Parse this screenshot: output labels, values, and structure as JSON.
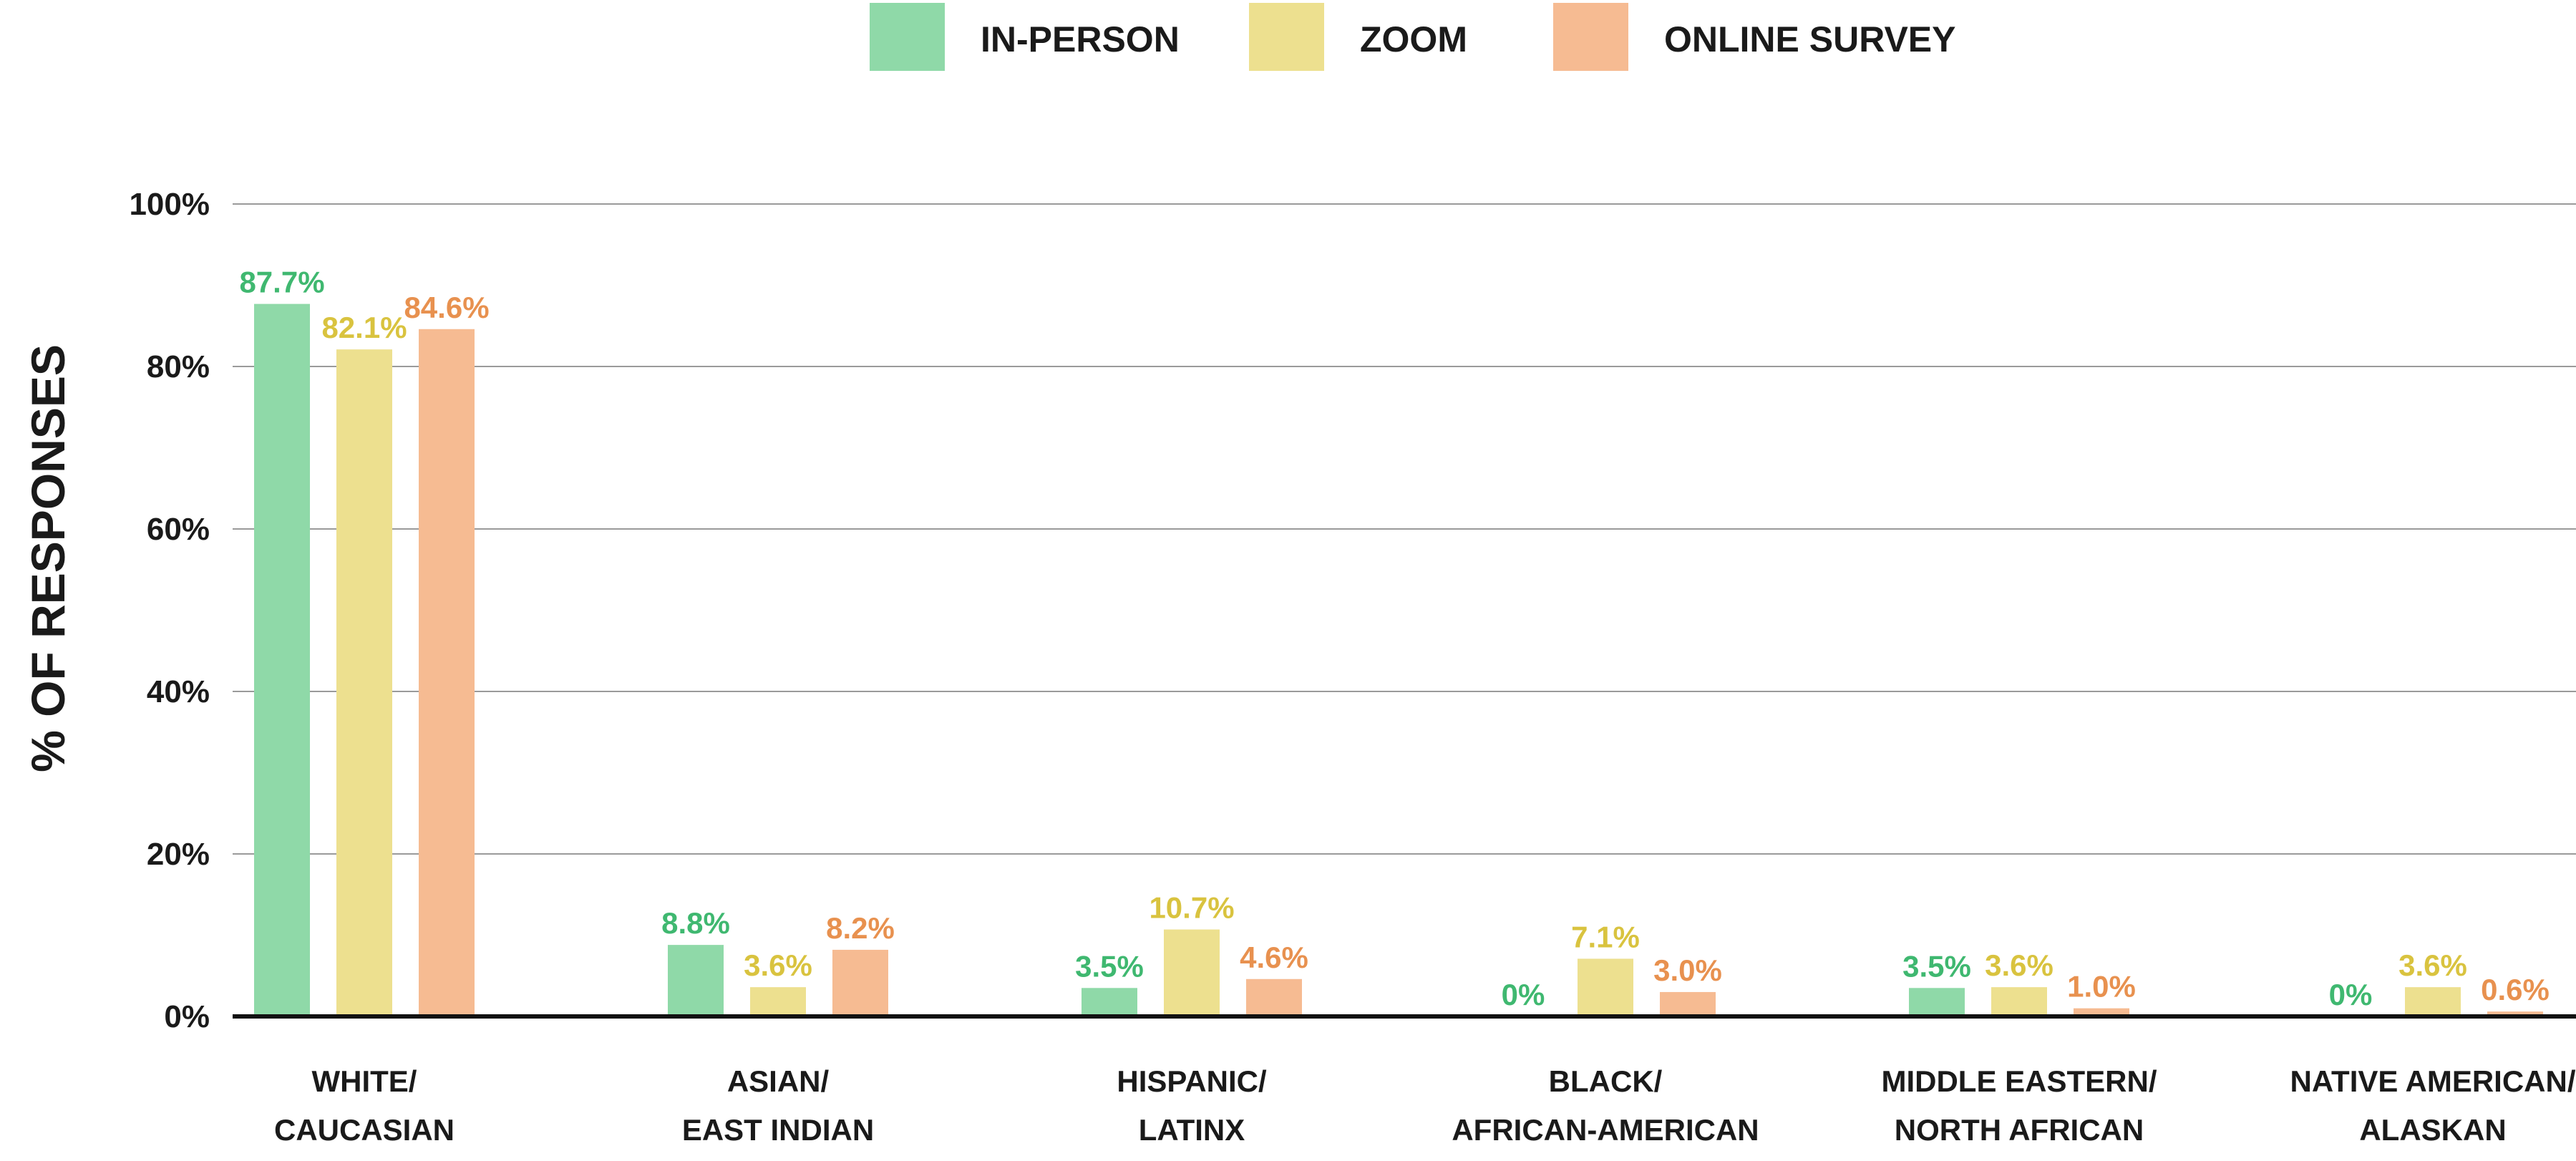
{
  "chart_data": {
    "type": "bar",
    "title": "",
    "xlabel": "",
    "ylabel": "% OF RESPONSES",
    "ylim": [
      0,
      100
    ],
    "yticks": [
      "0%",
      "20%",
      "40%",
      "60%",
      "80%",
      "100%"
    ],
    "grid": true,
    "legend_position": "top-center",
    "categories": [
      [
        "WHITE/",
        "CAUCASIAN"
      ],
      [
        "ASIAN/",
        "EAST INDIAN"
      ],
      [
        "HISPANIC/",
        "LATINX"
      ],
      [
        "BLACK/",
        "AFRICAN-AMERICAN"
      ],
      [
        "MIDDLE EASTERN/",
        "NORTH AFRICAN"
      ],
      [
        "NATIVE AMERICAN/",
        "ALASKAN"
      ]
    ],
    "series": [
      {
        "name": "IN-PERSON",
        "color": "#8fd9a8",
        "label_color": "#3fb870",
        "values": [
          87.7,
          8.8,
          3.5,
          0,
          3.5,
          0
        ],
        "labels": [
          "87.7%",
          "8.8%",
          "3.5%",
          "0%",
          "3.5%",
          "0%"
        ]
      },
      {
        "name": "ZOOM",
        "color": "#ede08f",
        "label_color": "#d9c33f",
        "values": [
          82.1,
          3.6,
          10.7,
          7.1,
          3.6,
          3.6
        ],
        "labels": [
          "82.1%",
          "3.6%",
          "10.7%",
          "7.1%",
          "3.6%",
          "3.6%"
        ]
      },
      {
        "name": "ONLINE SURVEY",
        "color": "#f6bb92",
        "label_color": "#e8914f",
        "values": [
          84.6,
          8.2,
          4.6,
          3.0,
          1.0,
          0.6
        ],
        "labels": [
          "84.6%",
          "8.2%",
          "4.6%",
          "3.0%",
          "1.0%",
          "0.6%"
        ]
      }
    ]
  }
}
